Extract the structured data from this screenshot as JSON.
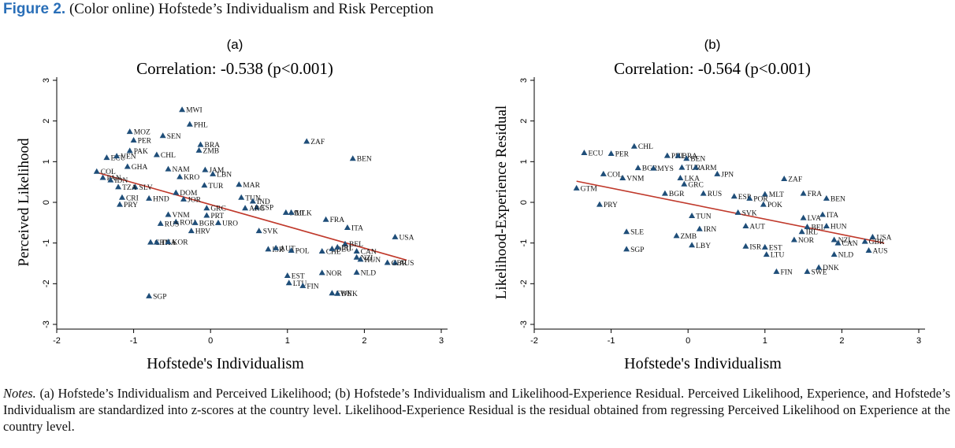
{
  "figure": {
    "label": "Figure 2.",
    "caption": "(Color online) Hofstede’s Individualism and Risk Perception"
  },
  "notes": {
    "label": "Notes.",
    "text": "(a) Hofstede’s Individualism and Perceived Likelihood; (b) Hofstede’s Individualism and Likelihood-Experience Residual. Perceived Likelihood, Experience, and Hofstede’s Individualism are standardized into z-scores at the country level. Likelihood-Experience Residual is the residual obtained from regressing Perceived Likelihood on Experience at the country level."
  },
  "colors": {
    "marker": "#1f4e79",
    "fit_line": "#c0392b",
    "axis": "#000000"
  },
  "chart_data": [
    {
      "type": "scatter",
      "panel_label": "(a)",
      "title": "Correlation: -0.538 (p<0.001)",
      "xlabel": "Hofstede's Individualism",
      "ylabel": "Perceived Likelihood",
      "xlim": [
        -2,
        3
      ],
      "ylim": [
        -3,
        3
      ],
      "xticks": [
        -2,
        -1,
        0,
        1,
        2,
        3
      ],
      "yticks": [
        -3,
        -2,
        -1,
        0,
        1,
        2,
        3
      ],
      "grid": false,
      "marker": "triangle",
      "fit_line": {
        "x": [
          -1.45,
          2.55
        ],
        "y": [
          0.72,
          -1.42
        ]
      },
      "points": [
        {
          "label": "MWI",
          "x": -0.37,
          "y": 2.28
        },
        {
          "label": "PHL",
          "x": -0.27,
          "y": 1.92
        },
        {
          "label": "MOZ",
          "x": -1.05,
          "y": 1.74
        },
        {
          "label": "SEN",
          "x": -0.62,
          "y": 1.64
        },
        {
          "label": "PER",
          "x": -1.0,
          "y": 1.53
        },
        {
          "label": "ZAF",
          "x": 1.25,
          "y": 1.5
        },
        {
          "label": "BRA",
          "x": -0.13,
          "y": 1.42
        },
        {
          "label": "ZMB",
          "x": -0.15,
          "y": 1.28
        },
        {
          "label": "PAK",
          "x": -1.05,
          "y": 1.27
        },
        {
          "label": "CHL",
          "x": -0.7,
          "y": 1.17
        },
        {
          "label": "ECU",
          "x": -1.35,
          "y": 1.1
        },
        {
          "label": "VEN",
          "x": -1.22,
          "y": 1.14
        },
        {
          "label": "BEN",
          "x": 1.85,
          "y": 1.08
        },
        {
          "label": "GHA",
          "x": -1.08,
          "y": 0.88
        },
        {
          "label": "NAM",
          "x": -0.55,
          "y": 0.82
        },
        {
          "label": "JAM",
          "x": -0.07,
          "y": 0.8
        },
        {
          "label": "COL",
          "x": -1.48,
          "y": 0.76
        },
        {
          "label": "LBN",
          "x": 0.03,
          "y": 0.7
        },
        {
          "label": "KRO",
          "x": -0.4,
          "y": 0.63
        },
        {
          "label": "PAN",
          "x": -1.4,
          "y": 0.61
        },
        {
          "label": "IDN",
          "x": -1.3,
          "y": 0.55
        },
        {
          "label": "TUR",
          "x": -0.08,
          "y": 0.42
        },
        {
          "label": "MAR",
          "x": 0.37,
          "y": 0.44
        },
        {
          "label": "SLV",
          "x": -0.98,
          "y": 0.38
        },
        {
          "label": "TZA",
          "x": -1.2,
          "y": 0.38
        },
        {
          "label": "DOM",
          "x": -0.45,
          "y": 0.24
        },
        {
          "label": "CRI",
          "x": -1.15,
          "y": 0.12
        },
        {
          "label": "HND",
          "x": -0.8,
          "y": 0.1
        },
        {
          "label": "JOR",
          "x": -0.35,
          "y": 0.08
        },
        {
          "label": "TUN",
          "x": 0.4,
          "y": 0.12
        },
        {
          "label": "IND",
          "x": 0.55,
          "y": 0.03
        },
        {
          "label": "PRY",
          "x": -1.18,
          "y": -0.05
        },
        {
          "label": "ESP",
          "x": 0.6,
          "y": -0.12
        },
        {
          "label": "GRC",
          "x": -0.05,
          "y": -0.14
        },
        {
          "label": "ARG",
          "x": 0.45,
          "y": -0.14
        },
        {
          "label": "MLT",
          "x": 0.98,
          "y": -0.25
        },
        {
          "label": "MLK",
          "x": 1.05,
          "y": -0.25
        },
        {
          "label": "FRA",
          "x": 1.5,
          "y": -0.42
        },
        {
          "label": "ITA",
          "x": 1.78,
          "y": -0.62
        },
        {
          "label": "VNM",
          "x": -0.55,
          "y": -0.3
        },
        {
          "label": "PRT",
          "x": -0.05,
          "y": -0.32
        },
        {
          "label": "ROU",
          "x": -0.45,
          "y": -0.48
        },
        {
          "label": "BGR",
          "x": -0.2,
          "y": -0.5
        },
        {
          "label": "URO",
          "x": 0.1,
          "y": -0.5
        },
        {
          "label": "RUS",
          "x": -0.65,
          "y": -0.52
        },
        {
          "label": "HRV",
          "x": -0.25,
          "y": -0.7
        },
        {
          "label": "SVK",
          "x": 0.63,
          "y": -0.7
        },
        {
          "label": "USA",
          "x": 2.4,
          "y": -0.85
        },
        {
          "label": "CHN",
          "x": -0.78,
          "y": -0.98
        },
        {
          "label": "THA",
          "x": -0.7,
          "y": -0.98
        },
        {
          "label": "KOR",
          "x": -0.55,
          "y": -0.97
        },
        {
          "label": "BEL",
          "x": 1.75,
          "y": -1.02
        },
        {
          "label": "ISR",
          "x": 0.75,
          "y": -1.15
        },
        {
          "label": "AUT",
          "x": 0.85,
          "y": -1.12
        },
        {
          "label": "POL",
          "x": 1.05,
          "y": -1.18
        },
        {
          "label": "CHE",
          "x": 1.45,
          "y": -1.2
        },
        {
          "label": "DEU",
          "x": 1.58,
          "y": -1.14
        },
        {
          "label": "IRL",
          "x": 1.65,
          "y": -1.1
        },
        {
          "label": "CAN",
          "x": 1.9,
          "y": -1.2
        },
        {
          "label": "NZL",
          "x": 1.9,
          "y": -1.35
        },
        {
          "label": "HUN",
          "x": 1.95,
          "y": -1.4
        },
        {
          "label": "AUS",
          "x": 2.4,
          "y": -1.48
        },
        {
          "label": "GBR",
          "x": 2.3,
          "y": -1.48
        },
        {
          "label": "NLD",
          "x": 1.9,
          "y": -1.72
        },
        {
          "label": "NOR",
          "x": 1.45,
          "y": -1.73
        },
        {
          "label": "EST",
          "x": 1.0,
          "y": -1.8
        },
        {
          "label": "LTU",
          "x": 1.02,
          "y": -1.98
        },
        {
          "label": "FIN",
          "x": 1.2,
          "y": -2.05
        },
        {
          "label": "SWE",
          "x": 1.58,
          "y": -2.23
        },
        {
          "label": "DNK",
          "x": 1.65,
          "y": -2.24
        },
        {
          "label": "SGP",
          "x": -0.8,
          "y": -2.3
        }
      ]
    },
    {
      "type": "scatter",
      "panel_label": "(b)",
      "title": "Correlation: -0.564 (p<0.001)",
      "xlabel": "Hofstede's Individualism",
      "ylabel": "Likelihood-Experience Residual",
      "xlim": [
        -2,
        3
      ],
      "ylim": [
        -3,
        3
      ],
      "xticks": [
        -2,
        -1,
        0,
        1,
        2,
        3
      ],
      "yticks": [
        -3,
        -2,
        -1,
        0,
        1,
        2,
        3
      ],
      "grid": false,
      "marker": "triangle",
      "fit_line": {
        "x": [
          -1.45,
          2.55
        ],
        "y": [
          0.52,
          -1.0
        ]
      },
      "points": [
        {
          "label": "CHL",
          "x": -0.7,
          "y": 1.38
        },
        {
          "label": "ECU",
          "x": -1.35,
          "y": 1.22
        },
        {
          "label": "PER",
          "x": -1.0,
          "y": 1.2
        },
        {
          "label": "PHL",
          "x": -0.27,
          "y": 1.15
        },
        {
          "label": "BRA",
          "x": -0.13,
          "y": 1.15
        },
        {
          "label": "BEN",
          "x": -0.02,
          "y": 1.08
        },
        {
          "label": "BGR",
          "x": -0.65,
          "y": 0.85
        },
        {
          "label": "MYS",
          "x": -0.45,
          "y": 0.84
        },
        {
          "label": "TUR",
          "x": -0.08,
          "y": 0.86
        },
        {
          "label": "ARM",
          "x": 0.1,
          "y": 0.86
        },
        {
          "label": "JPN",
          "x": 0.38,
          "y": 0.7
        },
        {
          "label": "ZAF",
          "x": 1.25,
          "y": 0.58
        },
        {
          "label": "COL",
          "x": -1.1,
          "y": 0.7
        },
        {
          "label": "VNM",
          "x": -0.85,
          "y": 0.6
        },
        {
          "label": "LKA",
          "x": -0.1,
          "y": 0.6
        },
        {
          "label": "GRC",
          "x": -0.05,
          "y": 0.45
        },
        {
          "label": "GTM",
          "x": -1.45,
          "y": 0.35
        },
        {
          "label": "BGR",
          "x": -0.3,
          "y": 0.22
        },
        {
          "label": "RUS",
          "x": 0.2,
          "y": 0.22
        },
        {
          "label": "MLT",
          "x": 1.0,
          "y": 0.2
        },
        {
          "label": "FRA",
          "x": 1.5,
          "y": 0.22
        },
        {
          "label": "BEN",
          "x": 1.8,
          "y": 0.1
        },
        {
          "label": "ESP",
          "x": 0.6,
          "y": 0.15
        },
        {
          "label": "POR",
          "x": 0.8,
          "y": 0.1
        },
        {
          "label": "POK",
          "x": 0.98,
          "y": -0.05
        },
        {
          "label": "PRY",
          "x": -1.15,
          "y": -0.05
        },
        {
          "label": "SVK",
          "x": 0.65,
          "y": -0.25
        },
        {
          "label": "TUN",
          "x": 0.05,
          "y": -0.33
        },
        {
          "label": "LVA",
          "x": 1.5,
          "y": -0.38
        },
        {
          "label": "ITA",
          "x": 1.75,
          "y": -0.3
        },
        {
          "label": "AUT",
          "x": 0.75,
          "y": -0.58
        },
        {
          "label": "BEL",
          "x": 1.55,
          "y": -0.6
        },
        {
          "label": "HUN",
          "x": 1.8,
          "y": -0.58
        },
        {
          "label": "IRN",
          "x": 0.15,
          "y": -0.65
        },
        {
          "label": "IRL",
          "x": 1.48,
          "y": -0.72
        },
        {
          "label": "ZMB",
          "x": -0.15,
          "y": -0.82
        },
        {
          "label": "NOR",
          "x": 1.38,
          "y": -0.92
        },
        {
          "label": "NZL",
          "x": 1.9,
          "y": -0.92
        },
        {
          "label": "CAN",
          "x": 1.95,
          "y": -1.0
        },
        {
          "label": "USA",
          "x": 2.4,
          "y": -0.85
        },
        {
          "label": "GBR",
          "x": 2.3,
          "y": -0.96
        },
        {
          "label": "AUS",
          "x": 2.35,
          "y": -1.18
        },
        {
          "label": "SLE",
          "x": -0.8,
          "y": -0.72
        },
        {
          "label": "SGP",
          "x": -0.8,
          "y": -1.15
        },
        {
          "label": "LBY",
          "x": 0.05,
          "y": -1.05
        },
        {
          "label": "ISR",
          "x": 0.75,
          "y": -1.08
        },
        {
          "label": "EST",
          "x": 1.0,
          "y": -1.1
        },
        {
          "label": "LTU",
          "x": 1.02,
          "y": -1.28
        },
        {
          "label": "NLD",
          "x": 1.9,
          "y": -1.28
        },
        {
          "label": "DNK",
          "x": 1.7,
          "y": -1.6
        },
        {
          "label": "SWE",
          "x": 1.55,
          "y": -1.7
        },
        {
          "label": "FIN",
          "x": 1.15,
          "y": -1.7
        }
      ]
    }
  ]
}
